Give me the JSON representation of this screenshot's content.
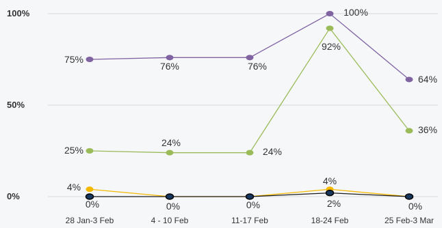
{
  "chart_data": {
    "type": "line",
    "categories": [
      "28 Jan-3 Feb",
      "4 - 10 Feb",
      "11-17 Feb",
      "18-24 Feb",
      "25 Feb-3 Mar"
    ],
    "y_ticks": [
      "100%",
      "50%",
      "0%"
    ],
    "ylim": [
      0,
      100
    ],
    "grid": true,
    "legend": "none",
    "series": [
      {
        "color": "#8064a2",
        "values": [
          75,
          76,
          76,
          100,
          64
        ],
        "labels": [
          "75%",
          "76%",
          "76%",
          "100%",
          "64%"
        ]
      },
      {
        "color": "#9bbb59",
        "values": [
          25,
          24,
          24,
          92,
          36
        ],
        "labels": [
          "25%",
          "24%",
          "24%",
          "92%",
          "36%"
        ]
      },
      {
        "color": "#f5b800",
        "values": [
          4,
          0,
          0,
          4,
          0
        ],
        "labels": [
          "4%",
          "",
          "",
          "4%",
          ""
        ]
      },
      {
        "color": "#1a1a1a",
        "marker_fill": "#17375e",
        "values": [
          0,
          0,
          0,
          2,
          0
        ],
        "labels": [
          "0%",
          "0%",
          "0%",
          "2%",
          "0%"
        ]
      }
    ]
  }
}
